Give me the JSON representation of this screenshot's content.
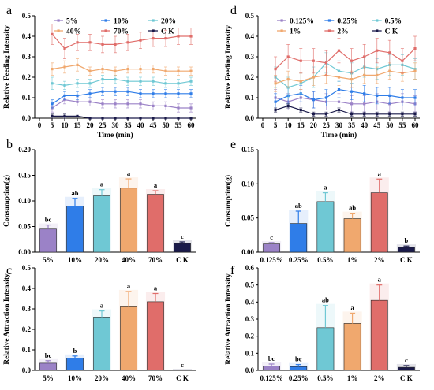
{
  "chart_data": [
    {
      "panel": "a",
      "type": "line",
      "xlabel": "Time (min)",
      "ylabel": "Relative Feeding Intensity",
      "ylim": [
        0,
        0.5
      ],
      "yticks": [
        "0.0",
        "0.1",
        "0.2",
        "0.3",
        "0.4",
        "0.5"
      ],
      "x": [
        5,
        10,
        15,
        20,
        25,
        30,
        35,
        40,
        45,
        50,
        55,
        60
      ],
      "xticks": [
        "0",
        "5",
        "10",
        "15",
        "20",
        "25",
        "30",
        "35",
        "40",
        "45",
        "50",
        "55",
        "60"
      ],
      "legend": "top",
      "series": [
        {
          "name": "5%",
          "color": "#9b82c7",
          "values": [
            0.05,
            0.09,
            0.08,
            0.08,
            0.07,
            0.07,
            0.07,
            0.07,
            0.06,
            0.06,
            0.05,
            0.05
          ],
          "errors": [
            0.02,
            0.02,
            0.02,
            0.02,
            0.02,
            0.02,
            0.02,
            0.02,
            0.02,
            0.02,
            0.02,
            0.02
          ]
        },
        {
          "name": "10%",
          "color": "#2f7de8",
          "values": [
            0.07,
            0.11,
            0.11,
            0.12,
            0.13,
            0.13,
            0.13,
            0.12,
            0.12,
            0.12,
            0.12,
            0.12
          ],
          "errors": [
            0.02,
            0.02,
            0.02,
            0.02,
            0.02,
            0.02,
            0.02,
            0.02,
            0.02,
            0.02,
            0.02,
            0.02
          ]
        },
        {
          "name": "20%",
          "color": "#6fc8d4",
          "values": [
            0.17,
            0.16,
            0.17,
            0.17,
            0.19,
            0.19,
            0.18,
            0.18,
            0.18,
            0.17,
            0.17,
            0.18
          ],
          "errors": [
            0.03,
            0.02,
            0.02,
            0.02,
            0.02,
            0.02,
            0.02,
            0.02,
            0.02,
            0.02,
            0.02,
            0.02
          ]
        },
        {
          "name": "40%",
          "color": "#f0a86e",
          "values": [
            0.24,
            0.25,
            0.26,
            0.23,
            0.24,
            0.23,
            0.24,
            0.24,
            0.24,
            0.23,
            0.23,
            0.23
          ],
          "errors": [
            0.03,
            0.03,
            0.03,
            0.02,
            0.02,
            0.02,
            0.02,
            0.02,
            0.02,
            0.02,
            0.02,
            0.02
          ]
        },
        {
          "name": "70%",
          "color": "#e06d6a",
          "values": [
            0.41,
            0.34,
            0.37,
            0.37,
            0.36,
            0.36,
            0.37,
            0.38,
            0.39,
            0.39,
            0.4,
            0.4
          ],
          "errors": [
            0.05,
            0.05,
            0.04,
            0.04,
            0.04,
            0.04,
            0.04,
            0.04,
            0.04,
            0.04,
            0.04,
            0.04
          ]
        },
        {
          "name": "C K",
          "color": "#1a1a4a",
          "values": [
            0.01,
            0.01,
            0.01,
            0.0,
            0.0,
            0.0,
            0.0,
            0.0,
            0.0,
            0.0,
            0.0,
            0.0
          ],
          "errors": [
            0.01,
            0.01,
            0.0,
            0.0,
            0.0,
            0.0,
            0.0,
            0.0,
            0.0,
            0.0,
            0.0,
            0.0
          ]
        }
      ]
    },
    {
      "panel": "b",
      "type": "bar",
      "ylabel": "Consumption(g)",
      "ylim": [
        0,
        0.2
      ],
      "yticks": [
        "0.00",
        "0.05",
        "0.10",
        "0.15",
        "0.20"
      ],
      "categories": [
        "5%",
        "10%",
        "20%",
        "40%",
        "70%",
        "C K"
      ],
      "values": [
        0.045,
        0.09,
        0.11,
        0.125,
        0.113,
        0.017
      ],
      "errors": [
        0.008,
        0.015,
        0.012,
        0.018,
        0.007,
        0.003
      ],
      "letters": [
        "bc",
        "ab",
        "a",
        "a",
        "a",
        "c"
      ],
      "colors": [
        "#9b82c7",
        "#2f7de8",
        "#6fc8d4",
        "#f0a86e",
        "#e06d6a",
        "#1a1a4a"
      ]
    },
    {
      "panel": "c",
      "type": "bar",
      "ylabel": "Relative Attraction Intensity",
      "ylim": [
        0,
        0.5
      ],
      "yticks": [
        "0.0",
        "0.1",
        "0.2",
        "0.3",
        "0.4",
        "0.5"
      ],
      "categories": [
        "5%",
        "10%",
        "20%",
        "40%",
        "70%",
        "C K"
      ],
      "values": [
        0.035,
        0.06,
        0.26,
        0.31,
        0.335,
        0.0
      ],
      "errors": [
        0.012,
        0.01,
        0.03,
        0.075,
        0.04,
        0.0
      ],
      "letters": [
        "bc",
        "b",
        "a",
        "a",
        "a",
        "c"
      ],
      "colors": [
        "#9b82c7",
        "#2f7de8",
        "#6fc8d4",
        "#f0a86e",
        "#e06d6a",
        "#1a1a4a"
      ]
    },
    {
      "panel": "d",
      "type": "line",
      "xlabel": "Time (min)",
      "ylabel": "Relative Feeding Intensity",
      "ylim": [
        0,
        0.5
      ],
      "yticks": [
        "0.0",
        "0.1",
        "0.2",
        "0.3",
        "0.4",
        "0.5"
      ],
      "x": [
        5,
        10,
        15,
        20,
        25,
        30,
        35,
        40,
        45,
        50,
        55,
        60
      ],
      "xticks": [
        "0",
        "5",
        "10",
        "15",
        "20",
        "25",
        "30",
        "35",
        "40",
        "45",
        "50",
        "55",
        "60"
      ],
      "legend": "top",
      "series": [
        {
          "name": "0.125%",
          "color": "#9b82c7",
          "values": [
            0.1,
            0.08,
            0.1,
            0.09,
            0.08,
            0.08,
            0.07,
            0.07,
            0.08,
            0.07,
            0.08,
            0.07
          ],
          "errors": [
            0.04,
            0.04,
            0.04,
            0.04,
            0.04,
            0.04,
            0.04,
            0.04,
            0.04,
            0.04,
            0.04,
            0.04
          ]
        },
        {
          "name": "0.25%",
          "color": "#2f7de8",
          "values": [
            0.08,
            0.11,
            0.12,
            0.09,
            0.1,
            0.14,
            0.13,
            0.12,
            0.11,
            0.11,
            0.1,
            0.1
          ],
          "errors": [
            0.04,
            0.04,
            0.04,
            0.04,
            0.04,
            0.04,
            0.04,
            0.04,
            0.04,
            0.04,
            0.04,
            0.04
          ]
        },
        {
          "name": "0.5%",
          "color": "#6fc8d4",
          "values": [
            0.2,
            0.15,
            0.17,
            0.2,
            0.27,
            0.23,
            0.22,
            0.25,
            0.24,
            0.26,
            0.26,
            0.24
          ],
          "errors": [
            0.05,
            0.05,
            0.05,
            0.05,
            0.05,
            0.05,
            0.05,
            0.05,
            0.05,
            0.05,
            0.05,
            0.05
          ]
        },
        {
          "name": "1%",
          "color": "#f0a86e",
          "values": [
            0.17,
            0.19,
            0.18,
            0.2,
            0.21,
            0.2,
            0.19,
            0.21,
            0.21,
            0.23,
            0.22,
            0.23
          ],
          "errors": [
            0.04,
            0.04,
            0.04,
            0.04,
            0.04,
            0.04,
            0.04,
            0.04,
            0.04,
            0.04,
            0.04,
            0.04
          ]
        },
        {
          "name": "2%",
          "color": "#e06d6a",
          "values": [
            0.24,
            0.3,
            0.28,
            0.28,
            0.27,
            0.33,
            0.28,
            0.3,
            0.33,
            0.32,
            0.28,
            0.34
          ],
          "errors": [
            0.06,
            0.06,
            0.06,
            0.06,
            0.06,
            0.06,
            0.06,
            0.06,
            0.06,
            0.06,
            0.06,
            0.06
          ]
        },
        {
          "name": "C K",
          "color": "#1a1a4a",
          "values": [
            0.04,
            0.06,
            0.04,
            0.02,
            0.02,
            0.04,
            0.02,
            0.02,
            0.02,
            0.02,
            0.02,
            0.02
          ],
          "errors": [
            0.01,
            0.01,
            0.01,
            0.01,
            0.01,
            0.01,
            0.01,
            0.01,
            0.01,
            0.01,
            0.01,
            0.01
          ]
        }
      ]
    },
    {
      "panel": "e",
      "type": "bar",
      "ylabel": "Consumption(g)",
      "ylim": [
        0,
        0.15
      ],
      "yticks": [
        "0.00",
        "0.05",
        "0.10",
        "0.15"
      ],
      "categories": [
        "0.125%",
        "0.25%",
        "0.5%",
        "1%",
        "2%",
        "C K"
      ],
      "values": [
        0.012,
        0.042,
        0.074,
        0.049,
        0.087,
        0.007
      ],
      "errors": [
        0.002,
        0.018,
        0.013,
        0.008,
        0.02,
        0.002
      ],
      "letters": [
        "c",
        "ab",
        "a",
        "ab",
        "a",
        "b"
      ],
      "colors": [
        "#9b82c7",
        "#2f7de8",
        "#6fc8d4",
        "#f0a86e",
        "#e06d6a",
        "#1a1a4a"
      ]
    },
    {
      "panel": "f",
      "type": "bar",
      "ylabel": "Relative Attraction Intensity",
      "ylim": [
        0,
        0.6
      ],
      "yticks": [
        "0.0",
        "0.1",
        "0.2",
        "0.3",
        "0.4",
        "0.5",
        "0.6"
      ],
      "categories": [
        "0.125%",
        "0.25%",
        "0.5%",
        "1%",
        "2%",
        "C K"
      ],
      "values": [
        0.025,
        0.022,
        0.25,
        0.275,
        0.41,
        0.018
      ],
      "errors": [
        0.012,
        0.012,
        0.13,
        0.06,
        0.09,
        0.01
      ],
      "letters": [
        "bc",
        "bc",
        "ab",
        "a",
        "a",
        "c"
      ],
      "colors": [
        "#9b82c7",
        "#2f7de8",
        "#6fc8d4",
        "#f0a86e",
        "#e06d6a",
        "#1a1a4a"
      ]
    }
  ]
}
